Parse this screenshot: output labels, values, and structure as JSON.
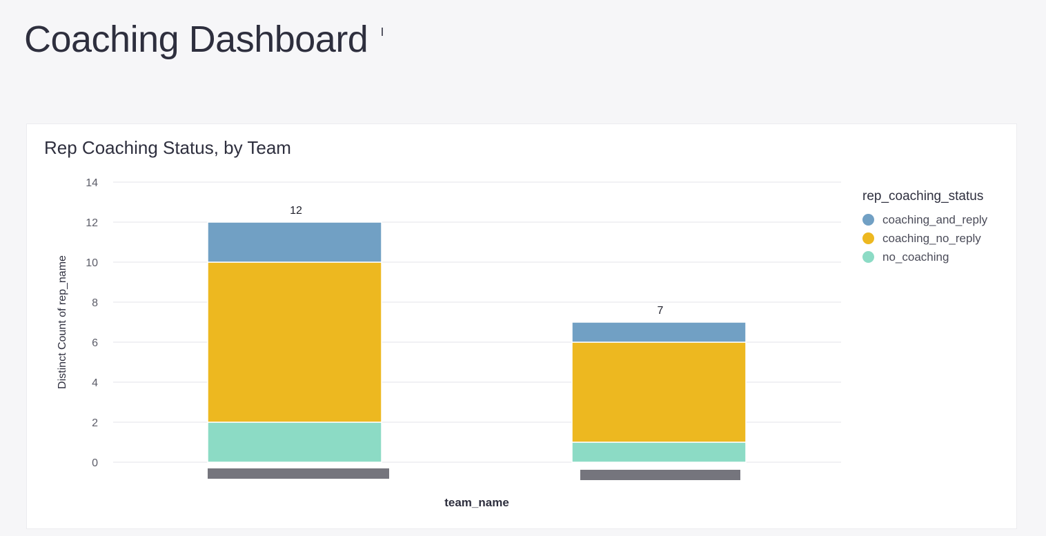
{
  "dashboard": {
    "title": "Coaching Dashboard"
  },
  "card": {
    "title": "Rep Coaching Status, by Team"
  },
  "legend": {
    "title": "rep_coaching_status"
  },
  "chart_data": {
    "type": "bar",
    "stacked": true,
    "title": "Rep Coaching Status, by Team",
    "xlabel": "team_name",
    "ylabel": "Distinct Count of rep_name",
    "ylim": [
      0,
      14
    ],
    "yticks": [
      0,
      2,
      4,
      6,
      8,
      10,
      12,
      14
    ],
    "grid": true,
    "legend_position": "right",
    "categories": [
      "",
      ""
    ],
    "totals": [
      12,
      7
    ],
    "series": [
      {
        "name": "no_coaching",
        "color": "#8cdbc5",
        "values": [
          2,
          1
        ]
      },
      {
        "name": "coaching_no_reply",
        "color": "#edb820",
        "values": [
          8,
          5
        ]
      },
      {
        "name": "coaching_and_reply",
        "color": "#71a0c4",
        "values": [
          2,
          1
        ]
      }
    ],
    "legend_order": [
      "coaching_and_reply",
      "coaching_no_reply",
      "no_coaching"
    ],
    "redacted_label_color": "#75757d"
  }
}
